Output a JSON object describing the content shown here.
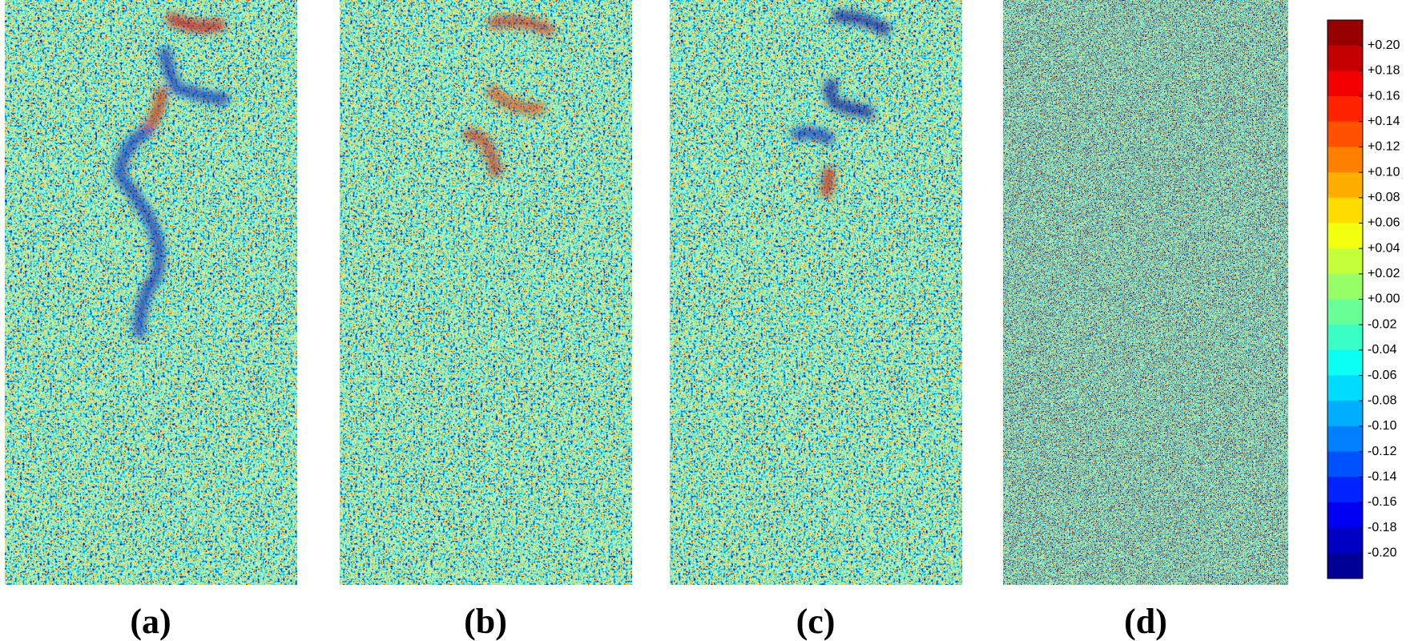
{
  "panels": [
    {
      "label": "(a)"
    },
    {
      "label": "(b)"
    },
    {
      "label": "(c)"
    },
    {
      "label": "(d)"
    }
  ],
  "colorbar": {
    "range": [
      -0.22,
      0.22
    ],
    "ticks": [
      {
        "value": 0.2,
        "label": "+0.20"
      },
      {
        "value": 0.18,
        "label": "+0.18"
      },
      {
        "value": 0.16,
        "label": "+0.16"
      },
      {
        "value": 0.14,
        "label": "+0.14"
      },
      {
        "value": 0.12,
        "label": "+0.12"
      },
      {
        "value": 0.1,
        "label": "+0.10"
      },
      {
        "value": 0.08,
        "label": "+0.08"
      },
      {
        "value": 0.06,
        "label": "+0.06"
      },
      {
        "value": 0.04,
        "label": "+0.04"
      },
      {
        "value": 0.02,
        "label": "+0.02"
      },
      {
        "value": 0,
        "label": "+0.00"
      },
      {
        "value": -0.02,
        "label": "-0.02"
      },
      {
        "value": -0.04,
        "label": "-0.04"
      },
      {
        "value": -0.06,
        "label": "-0.06"
      },
      {
        "value": -0.08,
        "label": "-0.08"
      },
      {
        "value": -0.1,
        "label": "-0.10"
      },
      {
        "value": -0.12,
        "label": "-0.12"
      },
      {
        "value": -0.14,
        "label": "-0.14"
      },
      {
        "value": -0.16,
        "label": "-0.16"
      },
      {
        "value": -0.18,
        "label": "-0.18"
      },
      {
        "value": -0.2,
        "label": "-0.20"
      }
    ]
  }
}
